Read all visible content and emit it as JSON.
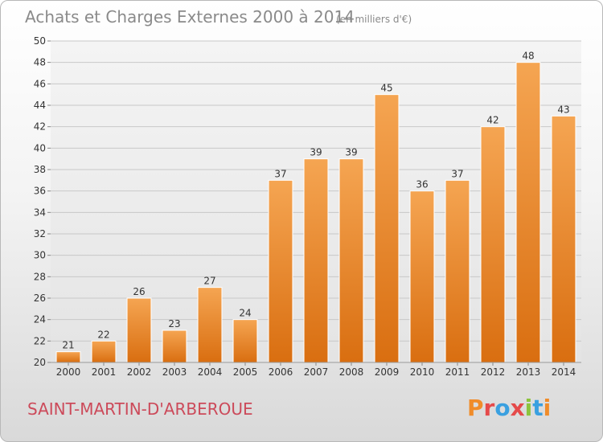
{
  "chart_data": {
    "type": "bar",
    "title": "Achats et Charges Externes 2000 à 2014",
    "subtitle": "(en milliers d'€)",
    "categories": [
      "2000",
      "2001",
      "2002",
      "2003",
      "2004",
      "2005",
      "2006",
      "2007",
      "2008",
      "2009",
      "2010",
      "2011",
      "2012",
      "2013",
      "2014"
    ],
    "values": [
      21,
      22,
      26,
      23,
      27,
      24,
      37,
      39,
      39,
      45,
      36,
      37,
      42,
      48,
      43
    ],
    "xlabel": "",
    "ylabel": "",
    "ylim": [
      20,
      50
    ],
    "yticks": [
      20,
      22,
      24,
      26,
      28,
      30,
      32,
      34,
      36,
      38,
      40,
      42,
      44,
      46,
      48,
      50
    ],
    "grid": true,
    "bar_color": "#f08c2a"
  },
  "footer": {
    "commune": "SAINT-MARTIN-D'ARBEROUE",
    "logo_text": "Proxiti"
  },
  "colors": {
    "title": "#8a8a8a",
    "commune": "#cc4a5a",
    "logo": [
      "#f08c2a",
      "#e54a4a",
      "#3aa0e0",
      "#e54a4a",
      "#8cc43c",
      "#3aa0e0",
      "#f08c2a"
    ]
  }
}
